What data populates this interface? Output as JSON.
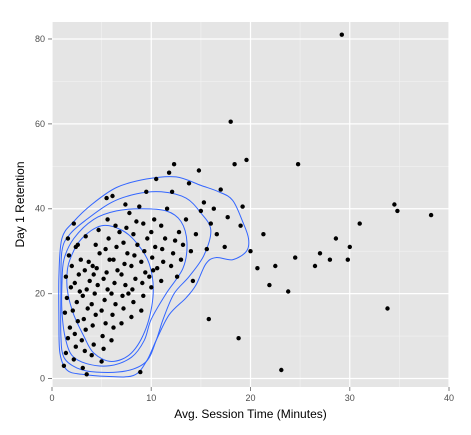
{
  "chart_data": {
    "type": "scatter",
    "title": "",
    "xlabel": "Avg. Session Time (Minutes)",
    "ylabel": "Day 1 Retention",
    "xlim": [
      0,
      40
    ],
    "ylim": [
      -2,
      84
    ],
    "x_ticks": [
      0,
      10,
      20,
      30,
      40
    ],
    "y_ticks": [
      0,
      20,
      40,
      60,
      80
    ],
    "x_tick_labels": [
      "0",
      "10",
      "20",
      "30",
      "40"
    ],
    "y_tick_labels": [
      "0",
      "20",
      "40",
      "60",
      "80"
    ],
    "grid": true,
    "legend": "none",
    "colors": {
      "panel": "#e5e5e5",
      "grid_major": "#ffffff",
      "grid_minor": "#f2f2f2",
      "points": "#000000",
      "contour": "#3366ff"
    },
    "series": [
      {
        "type": "scatter",
        "points": [
          [
            1.2,
            3.0
          ],
          [
            1.4,
            6.0
          ],
          [
            1.6,
            9.5
          ],
          [
            1.8,
            12.0
          ],
          [
            1.3,
            15.5
          ],
          [
            1.5,
            19.0
          ],
          [
            1.9,
            21.5
          ],
          [
            1.4,
            24.0
          ],
          [
            2.0,
            26.5
          ],
          [
            1.7,
            29.0
          ],
          [
            1.6,
            33.0
          ],
          [
            2.2,
            4.5
          ],
          [
            2.4,
            7.5
          ],
          [
            2.3,
            10.5
          ],
          [
            2.6,
            13.5
          ],
          [
            2.1,
            16.0
          ],
          [
            2.5,
            18.0
          ],
          [
            2.8,
            20.5
          ],
          [
            2.3,
            22.5
          ],
          [
            2.7,
            24.5
          ],
          [
            2.9,
            28.0
          ],
          [
            2.4,
            31.0
          ],
          [
            3.1,
            2.5
          ],
          [
            3.3,
            6.5
          ],
          [
            3.0,
            9.0
          ],
          [
            3.4,
            11.5
          ],
          [
            3.2,
            14.0
          ],
          [
            3.6,
            16.5
          ],
          [
            3.1,
            19.5
          ],
          [
            3.5,
            21.0
          ],
          [
            3.8,
            23.0
          ],
          [
            3.3,
            25.5
          ],
          [
            3.7,
            27.5
          ],
          [
            3.4,
            33.5
          ],
          [
            4.0,
            5.5
          ],
          [
            4.2,
            8.0
          ],
          [
            4.1,
            12.5
          ],
          [
            4.4,
            15.0
          ],
          [
            4.0,
            17.5
          ],
          [
            4.3,
            20.0
          ],
          [
            4.6,
            22.0
          ],
          [
            4.2,
            24.5
          ],
          [
            4.5,
            26.0
          ],
          [
            4.8,
            29.5
          ],
          [
            4.4,
            31.5
          ],
          [
            4.7,
            35.0
          ],
          [
            5.0,
            4.0
          ],
          [
            5.2,
            7.0
          ],
          [
            5.1,
            10.0
          ],
          [
            5.4,
            13.0
          ],
          [
            5.0,
            16.0
          ],
          [
            5.3,
            18.5
          ],
          [
            5.6,
            21.0
          ],
          [
            5.2,
            23.5
          ],
          [
            5.5,
            25.0
          ],
          [
            5.8,
            28.0
          ],
          [
            5.4,
            30.5
          ],
          [
            5.7,
            33.0
          ],
          [
            5.6,
            37.5
          ],
          [
            6.0,
            9.0
          ],
          [
            6.2,
            12.0
          ],
          [
            6.1,
            15.0
          ],
          [
            6.4,
            17.5
          ],
          [
            6.0,
            20.0
          ],
          [
            6.3,
            22.5
          ],
          [
            6.6,
            25.5
          ],
          [
            6.2,
            28.0
          ],
          [
            6.5,
            31.0
          ],
          [
            6.8,
            34.5
          ],
          [
            6.4,
            36.0
          ],
          [
            7.0,
            13.0
          ],
          [
            7.2,
            16.5
          ],
          [
            7.1,
            19.5
          ],
          [
            7.4,
            22.0
          ],
          [
            7.0,
            24.5
          ],
          [
            7.3,
            27.0
          ],
          [
            7.6,
            29.5
          ],
          [
            7.2,
            32.0
          ],
          [
            7.5,
            35.5
          ],
          [
            7.8,
            39.0
          ],
          [
            7.4,
            41.0
          ],
          [
            8.0,
            14.5
          ],
          [
            8.2,
            18.0
          ],
          [
            8.1,
            21.0
          ],
          [
            8.4,
            23.5
          ],
          [
            8.0,
            26.5
          ],
          [
            8.3,
            29.0
          ],
          [
            8.6,
            31.5
          ],
          [
            8.2,
            34.0
          ],
          [
            8.5,
            37.0
          ],
          [
            8.8,
            40.5
          ],
          [
            9.0,
            16.0
          ],
          [
            9.2,
            19.5
          ],
          [
            9.1,
            22.5
          ],
          [
            9.4,
            25.0
          ],
          [
            9.0,
            27.5
          ],
          [
            9.3,
            30.0
          ],
          [
            9.6,
            33.0
          ],
          [
            9.2,
            36.5
          ],
          [
            9.5,
            44.0
          ],
          [
            9.8,
            24.0
          ],
          [
            10.0,
            21.5
          ],
          [
            10.2,
            25.5
          ],
          [
            10.1,
            28.5
          ],
          [
            10.4,
            31.0
          ],
          [
            10.0,
            34.5
          ],
          [
            10.3,
            37.5
          ],
          [
            10.6,
            26.0
          ],
          [
            10.5,
            47.0
          ],
          [
            11.0,
            23.0
          ],
          [
            11.2,
            27.5
          ],
          [
            11.1,
            30.5
          ],
          [
            11.4,
            33.0
          ],
          [
            11.0,
            36.0
          ],
          [
            11.6,
            40.0
          ],
          [
            11.8,
            48.5
          ],
          [
            12.0,
            26.5
          ],
          [
            12.2,
            29.5
          ],
          [
            12.4,
            32.5
          ],
          [
            12.6,
            24.0
          ],
          [
            12.8,
            34.5
          ],
          [
            12.3,
            50.5
          ],
          [
            13.0,
            28.0
          ],
          [
            13.2,
            31.5
          ],
          [
            13.5,
            37.5
          ],
          [
            13.8,
            46.0
          ],
          [
            14.0,
            30.0
          ],
          [
            14.2,
            23.0
          ],
          [
            14.5,
            34.0
          ],
          [
            14.8,
            49.0
          ],
          [
            15.0,
            39.5
          ],
          [
            15.3,
            41.5
          ],
          [
            15.6,
            30.5
          ],
          [
            15.8,
            14.0
          ],
          [
            16.0,
            36.5
          ],
          [
            16.3,
            40.0
          ],
          [
            16.6,
            34.0
          ],
          [
            17.0,
            44.5
          ],
          [
            17.4,
            31.0
          ],
          [
            17.7,
            38.0
          ],
          [
            18.0,
            60.5
          ],
          [
            18.4,
            50.5
          ],
          [
            18.8,
            9.5
          ],
          [
            19.0,
            36.0
          ],
          [
            19.6,
            51.5
          ],
          [
            19.2,
            40.5
          ],
          [
            20.0,
            30.0
          ],
          [
            20.7,
            26.0
          ],
          [
            21.3,
            34.0
          ],
          [
            21.9,
            22.0
          ],
          [
            22.5,
            26.5
          ],
          [
            23.1,
            2.0
          ],
          [
            23.8,
            20.5
          ],
          [
            24.5,
            28.5
          ],
          [
            24.8,
            50.5
          ],
          [
            26.5,
            26.5
          ],
          [
            27.0,
            29.5
          ],
          [
            28.0,
            28.0
          ],
          [
            28.6,
            33.0
          ],
          [
            29.2,
            81.0
          ],
          [
            29.8,
            28.0
          ],
          [
            30.0,
            31.0
          ],
          [
            31.0,
            36.5
          ],
          [
            33.8,
            16.5
          ],
          [
            34.5,
            41.0
          ],
          [
            34.8,
            39.5
          ],
          [
            38.2,
            38.5
          ],
          [
            3.5,
            1.0
          ],
          [
            8.9,
            1.5
          ],
          [
            2.2,
            36.5
          ],
          [
            5.5,
            42.5
          ],
          [
            12.1,
            44.0
          ],
          [
            6.1,
            43.0
          ],
          [
            2.6,
            31.5
          ],
          [
            4.1,
            26.5
          ],
          [
            7.7,
            20.0
          ]
        ]
      }
    ],
    "contours": [
      {
        "level": 1,
        "points": [
          [
            1.5,
            24
          ],
          [
            1.8,
            28
          ],
          [
            3.0,
            33
          ],
          [
            5.0,
            36
          ],
          [
            7.0,
            35
          ],
          [
            8.5,
            32
          ],
          [
            9.8,
            27
          ],
          [
            10.2,
            20
          ],
          [
            9.5,
            12
          ],
          [
            8.0,
            6
          ],
          [
            6.0,
            4
          ],
          [
            4.2,
            6
          ],
          [
            3.2,
            10
          ],
          [
            2.2,
            15
          ],
          [
            1.6,
            20
          ]
        ]
      },
      {
        "level": 2,
        "points": [
          [
            1.2,
            28
          ],
          [
            2.2,
            33
          ],
          [
            4.2,
            37.5
          ],
          [
            6.5,
            39.5
          ],
          [
            9.0,
            40
          ],
          [
            11.5,
            39.5
          ],
          [
            13.0,
            37
          ],
          [
            13.6,
            32
          ],
          [
            13.2,
            26
          ],
          [
            11.5,
            20
          ],
          [
            10.0,
            14
          ],
          [
            9.3,
            9
          ],
          [
            8.0,
            5
          ],
          [
            5.8,
            3
          ],
          [
            3.5,
            3.5
          ],
          [
            2.0,
            5.5
          ],
          [
            1.3,
            10
          ],
          [
            1.0,
            16
          ],
          [
            1.0,
            22
          ]
        ]
      },
      {
        "level": 3,
        "points": [
          [
            1.0,
            30
          ],
          [
            1.8,
            34
          ],
          [
            3.5,
            37.5
          ],
          [
            6.0,
            41.5
          ],
          [
            8.5,
            43.5
          ],
          [
            11.0,
            44
          ],
          [
            13.5,
            42.5
          ],
          [
            15.0,
            39
          ],
          [
            16.0,
            35
          ],
          [
            15.3,
            29
          ],
          [
            13.8,
            24
          ],
          [
            12.3,
            20
          ],
          [
            11.2,
            14
          ],
          [
            10.5,
            9
          ],
          [
            9.5,
            4
          ],
          [
            7.5,
            1.8
          ],
          [
            4.5,
            1.5
          ],
          [
            2.5,
            2.5
          ],
          [
            1.2,
            5
          ],
          [
            0.9,
            10
          ],
          [
            0.9,
            20
          ]
        ]
      },
      {
        "level": 4,
        "points": [
          [
            1.0,
            33
          ],
          [
            2.2,
            37
          ],
          [
            4.0,
            41
          ],
          [
            6.5,
            45
          ],
          [
            9.5,
            47
          ],
          [
            12.5,
            47.5
          ],
          [
            15.0,
            45.5
          ],
          [
            16.8,
            44
          ],
          [
            18.2,
            42
          ],
          [
            19.2,
            37
          ],
          [
            19.8,
            33
          ],
          [
            19.6,
            30
          ],
          [
            18.2,
            28
          ],
          [
            16.5,
            28.5
          ],
          [
            15.5,
            27
          ],
          [
            14.5,
            22
          ],
          [
            13.5,
            19
          ],
          [
            11.8,
            15
          ],
          [
            10.5,
            9
          ],
          [
            9.5,
            4
          ],
          [
            8.2,
            0.7
          ],
          [
            5.5,
            0.5
          ],
          [
            3.0,
            1.0
          ],
          [
            1.5,
            2.0
          ],
          [
            0.8,
            6
          ],
          [
            0.7,
            14
          ],
          [
            0.7,
            24
          ]
        ]
      }
    ]
  }
}
